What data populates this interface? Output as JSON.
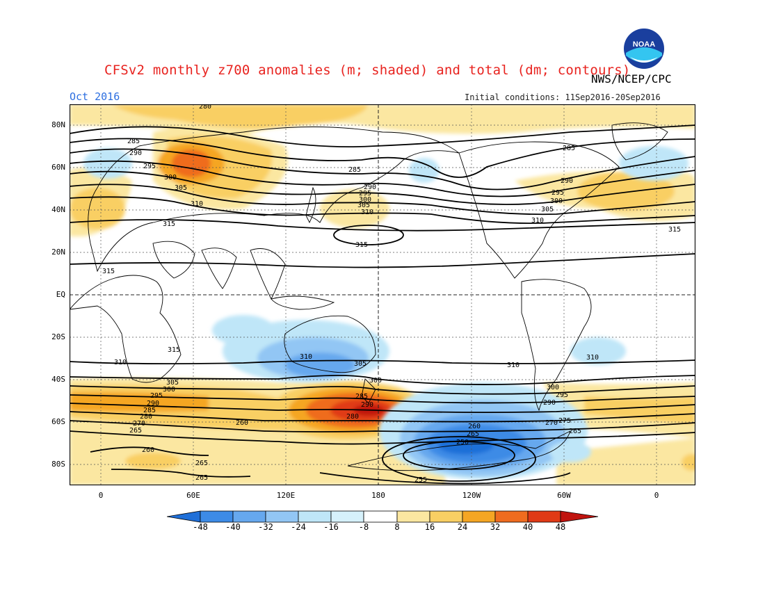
{
  "header": {
    "title": "CFSv2 monthly z700 anomalies (m; shaded) and total (dm; contours)",
    "agency": "NWS/NCEP/CPC",
    "month": "Oct 2016",
    "initial_conditions": "Initial conditions: 11Sep2016-20Sep2016",
    "logo_text": "NOAA"
  },
  "map": {
    "lat_labels": [
      "80N",
      "60N",
      "40N",
      "20N",
      "EQ",
      "20S",
      "40S",
      "60S",
      "80S"
    ],
    "lon_labels": [
      "0",
      "60E",
      "120E",
      "180",
      "120W",
      "60W",
      "0"
    ],
    "contour_values": [
      "280",
      "285",
      "290",
      "295",
      "300",
      "305",
      "310",
      "315",
      "260",
      "265",
      "270",
      "275",
      "255",
      "250"
    ]
  },
  "colorbar": {
    "labels": [
      "-48",
      "-40",
      "-32",
      "-24",
      "-16",
      "-8",
      "8",
      "16",
      "24",
      "32",
      "40",
      "48"
    ],
    "colors": [
      "#1f6fd8",
      "#3d8be6",
      "#66a8ee",
      "#92c6f4",
      "#bfe6f8",
      "#ffffff",
      "#fbe7a1",
      "#f9cf63",
      "#f5a623",
      "#ef6c1f",
      "#e03a16",
      "#c0140f"
    ]
  }
}
